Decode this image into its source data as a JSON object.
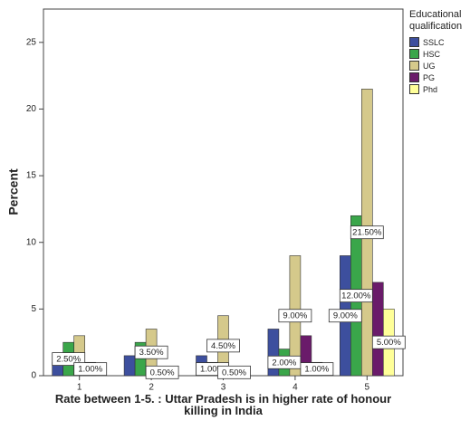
{
  "chart_data": {
    "type": "bar",
    "y_label": "Percent",
    "x_label": "Rate between 1-5. : Uttar Pradesh is in higher rate of honour killing in India",
    "legend_title": "Educational qualification",
    "legend": "right",
    "categories": [
      "1",
      "2",
      "3",
      "4",
      "5"
    ],
    "ylim": [
      0,
      27.5
    ],
    "yticks": [
      0,
      5,
      10,
      15,
      20,
      25
    ],
    "series": [
      {
        "name": "SSLC",
        "color": "#3d4f9e",
        "values": [
          1.0,
          1.5,
          1.5,
          3.5,
          9.0
        ],
        "value_labels": [
          null,
          null,
          null,
          null,
          "9.00%"
        ]
      },
      {
        "name": "HSC",
        "color": "#3aa64a",
        "values": [
          2.5,
          2.5,
          1.0,
          2.0,
          12.0
        ],
        "value_labels": [
          "2.50%",
          null,
          "1.00%",
          "2.00%",
          "12.00%"
        ]
      },
      {
        "name": "UG",
        "color": "#d5c98b",
        "values": [
          3.0,
          3.5,
          4.5,
          9.0,
          21.5
        ],
        "value_labels": [
          null,
          "3.50%",
          "4.50%",
          "9.00%",
          "21.50%"
        ]
      },
      {
        "name": "PG",
        "color": "#6a1b6a",
        "values": [
          1.0,
          0.5,
          0.5,
          3.0,
          7.0
        ],
        "value_labels": [
          "1.00%",
          "0.50%",
          "0.50%",
          null,
          null
        ]
      },
      {
        "name": "Phd",
        "color": "#ffff99",
        "values": [
          0,
          0,
          0,
          1.0,
          5.0
        ],
        "value_labels": [
          null,
          null,
          null,
          "1.00%",
          "5.00%"
        ]
      }
    ]
  }
}
